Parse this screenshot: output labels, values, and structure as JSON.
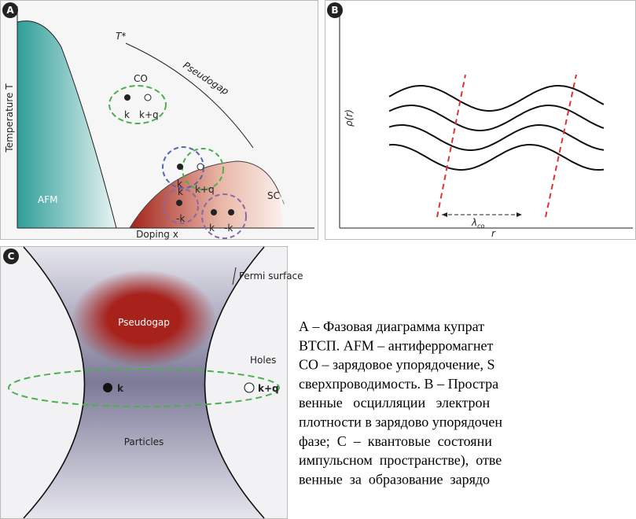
{
  "panel_a": {
    "letter": "A",
    "t_star": "T*",
    "pseudogap": "Pseudogap",
    "co": "CO",
    "co_k": "k",
    "co_kq": "k+q",
    "y_axis": "Temperature T",
    "afm": "AFM",
    "sc": "SC",
    "pair1_k": "k",
    "pair1_kq": "k+q",
    "pair2_k": "k",
    "pair2_mk": "-k",
    "pair3_k": "k",
    "pair3_mk": "-k",
    "x_axis": "Doping x"
  },
  "panel_b": {
    "letter": "B",
    "y_axis": "ρ(r)",
    "lambda": "λ",
    "lambda_sub": "co",
    "x_axis": "r"
  },
  "panel_c": {
    "letter": "C",
    "fermi": "Fermi surface",
    "pseudogap": "Pseudogap",
    "holes": "Holes",
    "k": "k",
    "kq": "k+q",
    "particles": "Particles"
  },
  "caption": {
    "lines": [
      "А – Фазовая диаграмма купрат",
      "ВТСП. AFM – антиферромагнет",
      "CO – зарядовое упорядочение, S",
      "сверхпроводимость. В – Простра",
      "венные   осцилляции   электрон",
      "плотности в зарядово упорядочен",
      "фазе;  С  –  квантовые  состояни",
      "импульсном  пространстве),  отве",
      "венные  за  образование  зарядо"
    ]
  }
}
